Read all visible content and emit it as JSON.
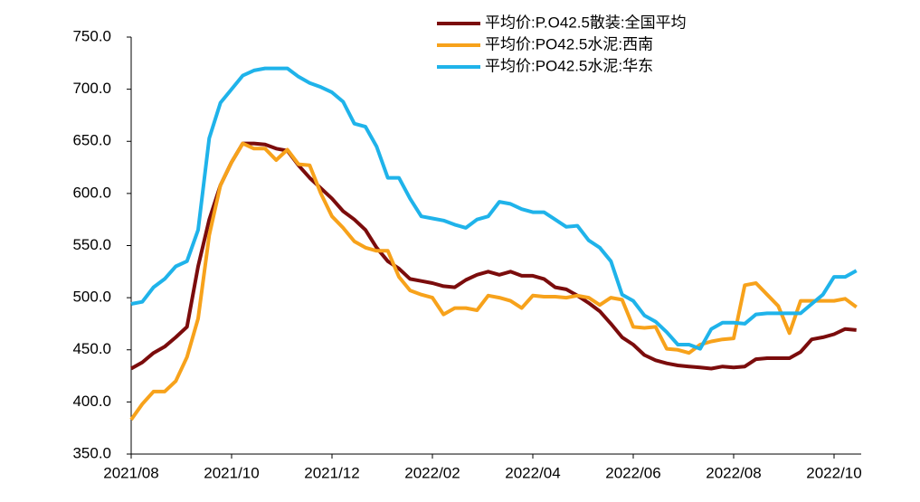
{
  "chart_data": {
    "type": "line",
    "categories": [
      "2021/08",
      null,
      null,
      null,
      null,
      null,
      null,
      null,
      null,
      "2021/10",
      null,
      null,
      null,
      null,
      null,
      null,
      null,
      null,
      "2021/12",
      null,
      null,
      null,
      null,
      null,
      null,
      null,
      null,
      "2022/02",
      null,
      null,
      null,
      null,
      null,
      null,
      null,
      null,
      "2022/04",
      null,
      null,
      null,
      null,
      null,
      null,
      null,
      null,
      "2022/06",
      null,
      null,
      null,
      null,
      null,
      null,
      null,
      null,
      "2022/08",
      null,
      null,
      null,
      null,
      null,
      null,
      null,
      null,
      "2022/10",
      null,
      null
    ],
    "series": [
      {
        "name": "平均价:P.O42.5散装:全国平均",
        "color": "#7b0c0c",
        "values": [
          432,
          438,
          447,
          453,
          462,
          472,
          530,
          575,
          608,
          630,
          648,
          648,
          647,
          643,
          641,
          627,
          615,
          605,
          595,
          583,
          575,
          565,
          548,
          535,
          528,
          518,
          516,
          514,
          511,
          510,
          517,
          522,
          525,
          522,
          525,
          521,
          521,
          518,
          510,
          508,
          502,
          495,
          487,
          475,
          462,
          455,
          445,
          440,
          437,
          435,
          434,
          433,
          432,
          434,
          433,
          434,
          441,
          442,
          442,
          442,
          448,
          460,
          462,
          465,
          470,
          469
        ]
      },
      {
        "name": "平均价:PO42.5水泥:西南",
        "color": "#f7a21b",
        "values": [
          383,
          398,
          410,
          410,
          420,
          443,
          480,
          560,
          608,
          630,
          648,
          643,
          643,
          632,
          642,
          628,
          627,
          600,
          578,
          567,
          554,
          548,
          545,
          545,
          520,
          507,
          503,
          500,
          484,
          490,
          490,
          488,
          502,
          500,
          497,
          490,
          502,
          501,
          501,
          500,
          502,
          500,
          493,
          500,
          498,
          472,
          471,
          472,
          451,
          450,
          447,
          455,
          458,
          460,
          461,
          512,
          514,
          503,
          492,
          466,
          497,
          497,
          497,
          497,
          499,
          491
        ]
      },
      {
        "name": "平均价:PO42.5水泥:华东",
        "color": "#1fb3ea",
        "values": [
          494,
          496,
          510,
          518,
          530,
          535,
          565,
          653,
          687,
          700,
          713,
          718,
          720,
          720,
          720,
          712,
          706,
          702,
          697,
          688,
          667,
          664,
          645,
          615,
          615,
          595,
          578,
          576,
          574,
          570,
          567,
          575,
          578,
          592,
          590,
          585,
          582,
          582,
          575,
          568,
          569,
          555,
          548,
          535,
          503,
          497,
          483,
          477,
          467,
          455,
          455,
          451,
          470,
          476,
          476,
          475,
          484,
          485,
          485,
          485,
          485,
          494,
          503,
          520,
          520,
          526
        ]
      }
    ],
    "ylim": [
      350,
      750
    ],
    "yticks": [
      {
        "value": 350,
        "label": "350.0"
      },
      {
        "value": 400,
        "label": "400.0"
      },
      {
        "value": 450,
        "label": "450.0"
      },
      {
        "value": 500,
        "label": "500.0"
      },
      {
        "value": 550,
        "label": "550.0"
      },
      {
        "value": 600,
        "label": "600.0"
      },
      {
        "value": 650,
        "label": "650.0"
      },
      {
        "value": 700,
        "label": "700.0"
      },
      {
        "value": 750,
        "label": "750.0"
      }
    ],
    "grid": false,
    "legend": "top"
  }
}
